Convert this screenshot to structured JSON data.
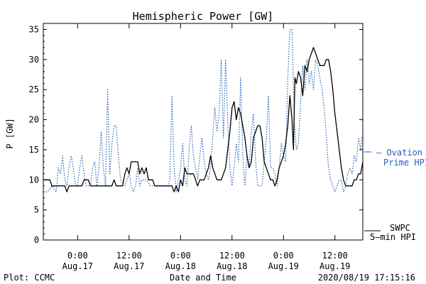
{
  "chart_data": {
    "type": "line",
    "title": "Hemispheric Power [GW]",
    "ylabel": "P [GW]",
    "xlabel": "Date and Time",
    "ylim": [
      0,
      36
    ],
    "yticks": [
      0,
      5,
      10,
      15,
      20,
      25,
      30,
      35
    ],
    "xlim": [
      "2020-08-16 16:00",
      "2020-08-19 18:30"
    ],
    "xticks": [
      {
        "time": "2020-08-17 00:00",
        "line1": "0:00",
        "line2": "Aug.17"
      },
      {
        "time": "2020-08-17 12:00",
        "line1": "12:00",
        "line2": "Aug.17"
      },
      {
        "time": "2020-08-18 00:00",
        "line1": "0:00",
        "line2": "Aug.18"
      },
      {
        "time": "2020-08-18 12:00",
        "line1": "12:00",
        "line2": "Aug.18"
      },
      {
        "time": "2020-08-19 00:00",
        "line1": "0:00",
        "line2": "Aug.19"
      },
      {
        "time": "2020-08-19 12:00",
        "line1": "12:00",
        "line2": "Aug.19"
      }
    ],
    "series": [
      {
        "name": "SWPC 5-min HPI",
        "color": "#000000",
        "style": "solid",
        "points": [
          [
            "2020-08-16 16:00",
            10
          ],
          [
            "2020-08-16 17:30",
            10
          ],
          [
            "2020-08-16 18:00",
            9
          ],
          [
            "2020-08-16 21:00",
            9
          ],
          [
            "2020-08-16 21:30",
            8
          ],
          [
            "2020-08-16 22:00",
            9
          ],
          [
            "2020-08-17 01:00",
            9
          ],
          [
            "2020-08-17 01:30",
            10
          ],
          [
            "2020-08-17 02:30",
            10
          ],
          [
            "2020-08-17 03:00",
            9
          ],
          [
            "2020-08-17 08:00",
            9
          ],
          [
            "2020-08-17 08:30",
            10
          ],
          [
            "2020-08-17 09:00",
            9
          ],
          [
            "2020-08-17 10:30",
            9
          ],
          [
            "2020-08-17 11:00",
            11
          ],
          [
            "2020-08-17 11:30",
            12
          ],
          [
            "2020-08-17 12:00",
            11
          ],
          [
            "2020-08-17 12:30",
            13
          ],
          [
            "2020-08-17 14:00",
            13
          ],
          [
            "2020-08-17 14:30",
            11
          ],
          [
            "2020-08-17 15:00",
            12
          ],
          [
            "2020-08-17 15:30",
            11
          ],
          [
            "2020-08-17 16:00",
            12
          ],
          [
            "2020-08-17 16:30",
            10
          ],
          [
            "2020-08-17 17:30",
            10
          ],
          [
            "2020-08-17 18:00",
            9
          ],
          [
            "2020-08-17 22:00",
            9
          ],
          [
            "2020-08-17 22:30",
            8
          ],
          [
            "2020-08-17 23:00",
            9
          ],
          [
            "2020-08-17 23:30",
            8
          ],
          [
            "2020-08-18 00:00",
            10
          ],
          [
            "2020-08-18 00:30",
            9
          ],
          [
            "2020-08-18 01:00",
            12
          ],
          [
            "2020-08-18 01:30",
            11
          ],
          [
            "2020-08-18 03:00",
            11
          ],
          [
            "2020-08-18 03:30",
            10
          ],
          [
            "2020-08-18 04:00",
            9
          ],
          [
            "2020-08-18 04:30",
            10
          ],
          [
            "2020-08-18 05:30",
            10
          ],
          [
            "2020-08-18 06:30",
            12
          ],
          [
            "2020-08-18 07:00",
            14
          ],
          [
            "2020-08-18 07:30",
            12
          ],
          [
            "2020-08-18 08:00",
            11
          ],
          [
            "2020-08-18 08:30",
            10
          ],
          [
            "2020-08-18 09:30",
            10
          ],
          [
            "2020-08-18 10:00",
            11
          ],
          [
            "2020-08-18 10:30",
            12
          ],
          [
            "2020-08-18 11:00",
            15
          ],
          [
            "2020-08-18 11:30",
            18
          ],
          [
            "2020-08-18 12:00",
            22
          ],
          [
            "2020-08-18 12:30",
            23
          ],
          [
            "2020-08-18 13:00",
            20
          ],
          [
            "2020-08-18 13:30",
            22
          ],
          [
            "2020-08-18 14:00",
            21
          ],
          [
            "2020-08-18 14:30",
            19
          ],
          [
            "2020-08-18 15:00",
            17
          ],
          [
            "2020-08-18 15:30",
            14
          ],
          [
            "2020-08-18 16:00",
            12
          ],
          [
            "2020-08-18 16:30",
            13
          ],
          [
            "2020-08-18 17:00",
            17
          ],
          [
            "2020-08-18 17:30",
            18
          ],
          [
            "2020-08-18 18:00",
            19
          ],
          [
            "2020-08-18 18:30",
            19
          ],
          [
            "2020-08-18 19:00",
            17
          ],
          [
            "2020-08-18 19:30",
            13
          ],
          [
            "2020-08-18 20:00",
            12
          ],
          [
            "2020-08-18 20:30",
            11
          ],
          [
            "2020-08-18 21:00",
            10
          ],
          [
            "2020-08-18 21:30",
            10
          ],
          [
            "2020-08-18 22:00",
            9
          ],
          [
            "2020-08-18 22:30",
            10
          ],
          [
            "2020-08-18 23:00",
            12
          ],
          [
            "2020-08-18 23:30",
            13
          ],
          [
            "2020-08-19 00:00",
            14
          ],
          [
            "2020-08-19 00:30",
            16
          ],
          [
            "2020-08-19 01:00",
            19
          ],
          [
            "2020-08-19 01:30",
            24
          ],
          [
            "2020-08-19 02:00",
            20
          ],
          [
            "2020-08-19 02:20",
            15
          ],
          [
            "2020-08-19 02:40",
            27
          ],
          [
            "2020-08-19 03:00",
            26
          ],
          [
            "2020-08-19 03:30",
            28
          ],
          [
            "2020-08-19 04:00",
            27
          ],
          [
            "2020-08-19 04:30",
            24
          ],
          [
            "2020-08-19 05:00",
            29
          ],
          [
            "2020-08-19 05:30",
            28
          ],
          [
            "2020-08-19 06:00",
            30
          ],
          [
            "2020-08-19 06:30",
            31
          ],
          [
            "2020-08-19 07:00",
            32
          ],
          [
            "2020-08-19 07:30",
            31
          ],
          [
            "2020-08-19 08:00",
            30
          ],
          [
            "2020-08-19 08:30",
            29
          ],
          [
            "2020-08-19 09:30",
            29
          ],
          [
            "2020-08-19 10:00",
            30
          ],
          [
            "2020-08-19 10:30",
            30
          ],
          [
            "2020-08-19 11:00",
            28
          ],
          [
            "2020-08-19 11:30",
            25
          ],
          [
            "2020-08-19 12:00",
            21
          ],
          [
            "2020-08-19 12:30",
            18
          ],
          [
            "2020-08-19 13:00",
            15
          ],
          [
            "2020-08-19 13:30",
            12
          ],
          [
            "2020-08-19 14:00",
            10
          ],
          [
            "2020-08-19 14:30",
            9
          ],
          [
            "2020-08-19 16:00",
            9
          ],
          [
            "2020-08-19 16:30",
            10
          ],
          [
            "2020-08-19 17:00",
            10
          ],
          [
            "2020-08-19 17:30",
            11
          ],
          [
            "2020-08-19 18:00",
            11
          ],
          [
            "2020-08-19 18:30",
            13
          ]
        ]
      },
      {
        "name": "Ovation Prime HPI",
        "color": "#2a62b8",
        "style": "dotted",
        "points": [
          [
            "2020-08-16 16:00",
            8
          ],
          [
            "2020-08-16 17:00",
            8
          ],
          [
            "2020-08-16 18:00",
            9
          ],
          [
            "2020-08-16 19:00",
            8
          ],
          [
            "2020-08-16 19:30",
            12
          ],
          [
            "2020-08-16 20:00",
            11
          ],
          [
            "2020-08-16 20:30",
            14
          ],
          [
            "2020-08-16 21:00",
            10
          ],
          [
            "2020-08-16 21:30",
            9
          ],
          [
            "2020-08-16 22:00",
            12
          ],
          [
            "2020-08-16 22:30",
            14
          ],
          [
            "2020-08-16 23:00",
            12
          ],
          [
            "2020-08-16 23:30",
            9
          ],
          [
            "2020-08-17 00:00",
            9
          ],
          [
            "2020-08-17 00:30",
            12
          ],
          [
            "2020-08-17 01:00",
            14
          ],
          [
            "2020-08-17 01:30",
            11
          ],
          [
            "2020-08-17 02:00",
            9
          ],
          [
            "2020-08-17 03:00",
            9
          ],
          [
            "2020-08-17 03:30",
            12
          ],
          [
            "2020-08-17 04:00",
            13
          ],
          [
            "2020-08-17 04:30",
            9
          ],
          [
            "2020-08-17 05:00",
            12
          ],
          [
            "2020-08-17 05:30",
            18
          ],
          [
            "2020-08-17 06:00",
            12
          ],
          [
            "2020-08-17 06:30",
            9
          ],
          [
            "2020-08-17 07:00",
            25
          ],
          [
            "2020-08-17 07:30",
            11
          ],
          [
            "2020-08-17 08:00",
            16
          ],
          [
            "2020-08-17 08:30",
            19
          ],
          [
            "2020-08-17 09:00",
            19
          ],
          [
            "2020-08-17 09:30",
            14
          ],
          [
            "2020-08-17 10:00",
            10
          ],
          [
            "2020-08-17 11:00",
            9
          ],
          [
            "2020-08-17 12:00",
            11
          ],
          [
            "2020-08-17 12:30",
            9
          ],
          [
            "2020-08-17 13:00",
            8
          ],
          [
            "2020-08-17 13:30",
            9
          ],
          [
            "2020-08-17 14:00",
            12
          ],
          [
            "2020-08-17 14:30",
            9
          ],
          [
            "2020-08-17 15:00",
            10
          ],
          [
            "2020-08-17 16:00",
            10
          ],
          [
            "2020-08-17 17:00",
            9
          ],
          [
            "2020-08-17 21:00",
            9
          ],
          [
            "2020-08-17 21:30",
            10
          ],
          [
            "2020-08-17 22:00",
            24
          ],
          [
            "2020-08-17 22:30",
            12
          ],
          [
            "2020-08-17 23:00",
            8
          ],
          [
            "2020-08-17 23:30",
            10
          ],
          [
            "2020-08-18 00:00",
            12
          ],
          [
            "2020-08-18 00:30",
            16
          ],
          [
            "2020-08-18 01:00",
            10
          ],
          [
            "2020-08-18 01:30",
            9
          ],
          [
            "2020-08-18 02:00",
            15
          ],
          [
            "2020-08-18 02:30",
            19
          ],
          [
            "2020-08-18 03:00",
            14
          ],
          [
            "2020-08-18 03:30",
            12
          ],
          [
            "2020-08-18 04:00",
            10
          ],
          [
            "2020-08-18 04:30",
            14
          ],
          [
            "2020-08-18 05:00",
            17
          ],
          [
            "2020-08-18 05:30",
            13
          ],
          [
            "2020-08-18 06:00",
            11
          ],
          [
            "2020-08-18 06:30",
            10
          ],
          [
            "2020-08-18 07:00",
            12
          ],
          [
            "2020-08-18 07:30",
            17
          ],
          [
            "2020-08-18 08:00",
            22
          ],
          [
            "2020-08-18 08:30",
            18
          ],
          [
            "2020-08-18 09:00",
            21
          ],
          [
            "2020-08-18 09:30",
            30
          ],
          [
            "2020-08-18 10:00",
            17
          ],
          [
            "2020-08-18 10:30",
            30
          ],
          [
            "2020-08-18 11:00",
            20
          ],
          [
            "2020-08-18 11:30",
            12
          ],
          [
            "2020-08-18 12:00",
            9
          ],
          [
            "2020-08-18 12:30",
            12
          ],
          [
            "2020-08-18 13:00",
            16
          ],
          [
            "2020-08-18 13:30",
            13
          ],
          [
            "2020-08-18 14:00",
            27
          ],
          [
            "2020-08-18 14:30",
            14
          ],
          [
            "2020-08-18 15:00",
            9
          ],
          [
            "2020-08-18 15:30",
            14
          ],
          [
            "2020-08-18 16:00",
            12
          ],
          [
            "2020-08-18 16:30",
            18
          ],
          [
            "2020-08-18 17:00",
            21
          ],
          [
            "2020-08-18 17:30",
            13
          ],
          [
            "2020-08-18 18:00",
            9
          ],
          [
            "2020-08-18 19:00",
            9
          ],
          [
            "2020-08-18 19:30",
            13
          ],
          [
            "2020-08-18 20:00",
            17
          ],
          [
            "2020-08-18 20:30",
            24
          ],
          [
            "2020-08-18 21:00",
            12
          ],
          [
            "2020-08-18 21:30",
            12
          ],
          [
            "2020-08-18 22:00",
            11
          ],
          [
            "2020-08-18 22:30",
            9
          ],
          [
            "2020-08-18 23:00",
            12
          ],
          [
            "2020-08-18 23:30",
            16
          ],
          [
            "2020-08-19 00:00",
            14
          ],
          [
            "2020-08-19 00:30",
            13
          ],
          [
            "2020-08-19 01:00",
            27
          ],
          [
            "2020-08-19 01:30",
            35
          ],
          [
            "2020-08-19 02:00",
            35
          ],
          [
            "2020-08-19 02:30",
            20
          ],
          [
            "2020-08-19 03:00",
            15
          ],
          [
            "2020-08-19 03:30",
            16
          ],
          [
            "2020-08-19 04:00",
            23
          ],
          [
            "2020-08-19 04:30",
            29
          ],
          [
            "2020-08-19 05:00",
            25
          ],
          [
            "2020-08-19 05:30",
            30
          ],
          [
            "2020-08-19 06:00",
            26
          ],
          [
            "2020-08-19 06:30",
            28
          ],
          [
            "2020-08-19 07:00",
            25
          ],
          [
            "2020-08-19 07:30",
            30
          ],
          [
            "2020-08-19 08:00",
            29
          ],
          [
            "2020-08-19 08:30",
            27
          ],
          [
            "2020-08-19 09:00",
            25
          ],
          [
            "2020-08-19 09:30",
            22
          ],
          [
            "2020-08-19 10:00",
            17
          ],
          [
            "2020-08-19 10:30",
            12
          ],
          [
            "2020-08-19 11:00",
            10
          ],
          [
            "2020-08-19 11:30",
            9
          ],
          [
            "2020-08-19 12:00",
            8
          ],
          [
            "2020-08-19 12:30",
            9
          ],
          [
            "2020-08-19 13:00",
            10
          ],
          [
            "2020-08-19 13:30",
            10
          ],
          [
            "2020-08-19 14:00",
            8
          ],
          [
            "2020-08-19 14:30",
            9
          ],
          [
            "2020-08-19 15:00",
            11
          ],
          [
            "2020-08-19 15:30",
            12
          ],
          [
            "2020-08-19 16:00",
            11
          ],
          [
            "2020-08-19 16:30",
            14
          ],
          [
            "2020-08-19 17:00",
            13
          ],
          [
            "2020-08-19 17:30",
            17
          ],
          [
            "2020-08-19 18:00",
            15
          ],
          [
            "2020-08-19 18:30",
            18
          ]
        ]
      }
    ],
    "legend": [
      {
        "text_line1": "— Ovation",
        "text_line2": "Prime HPI",
        "color": "#2a62b8",
        "placement": "right"
      },
      {
        "text_line1": "SWPC",
        "text_line2": "5–min HPI",
        "color": "#000000",
        "placement": "bottom-right"
      }
    ]
  },
  "footer": {
    "plot_credit": "Plot: CCMC",
    "timestamp": "2020/08/19 17:15:16"
  }
}
